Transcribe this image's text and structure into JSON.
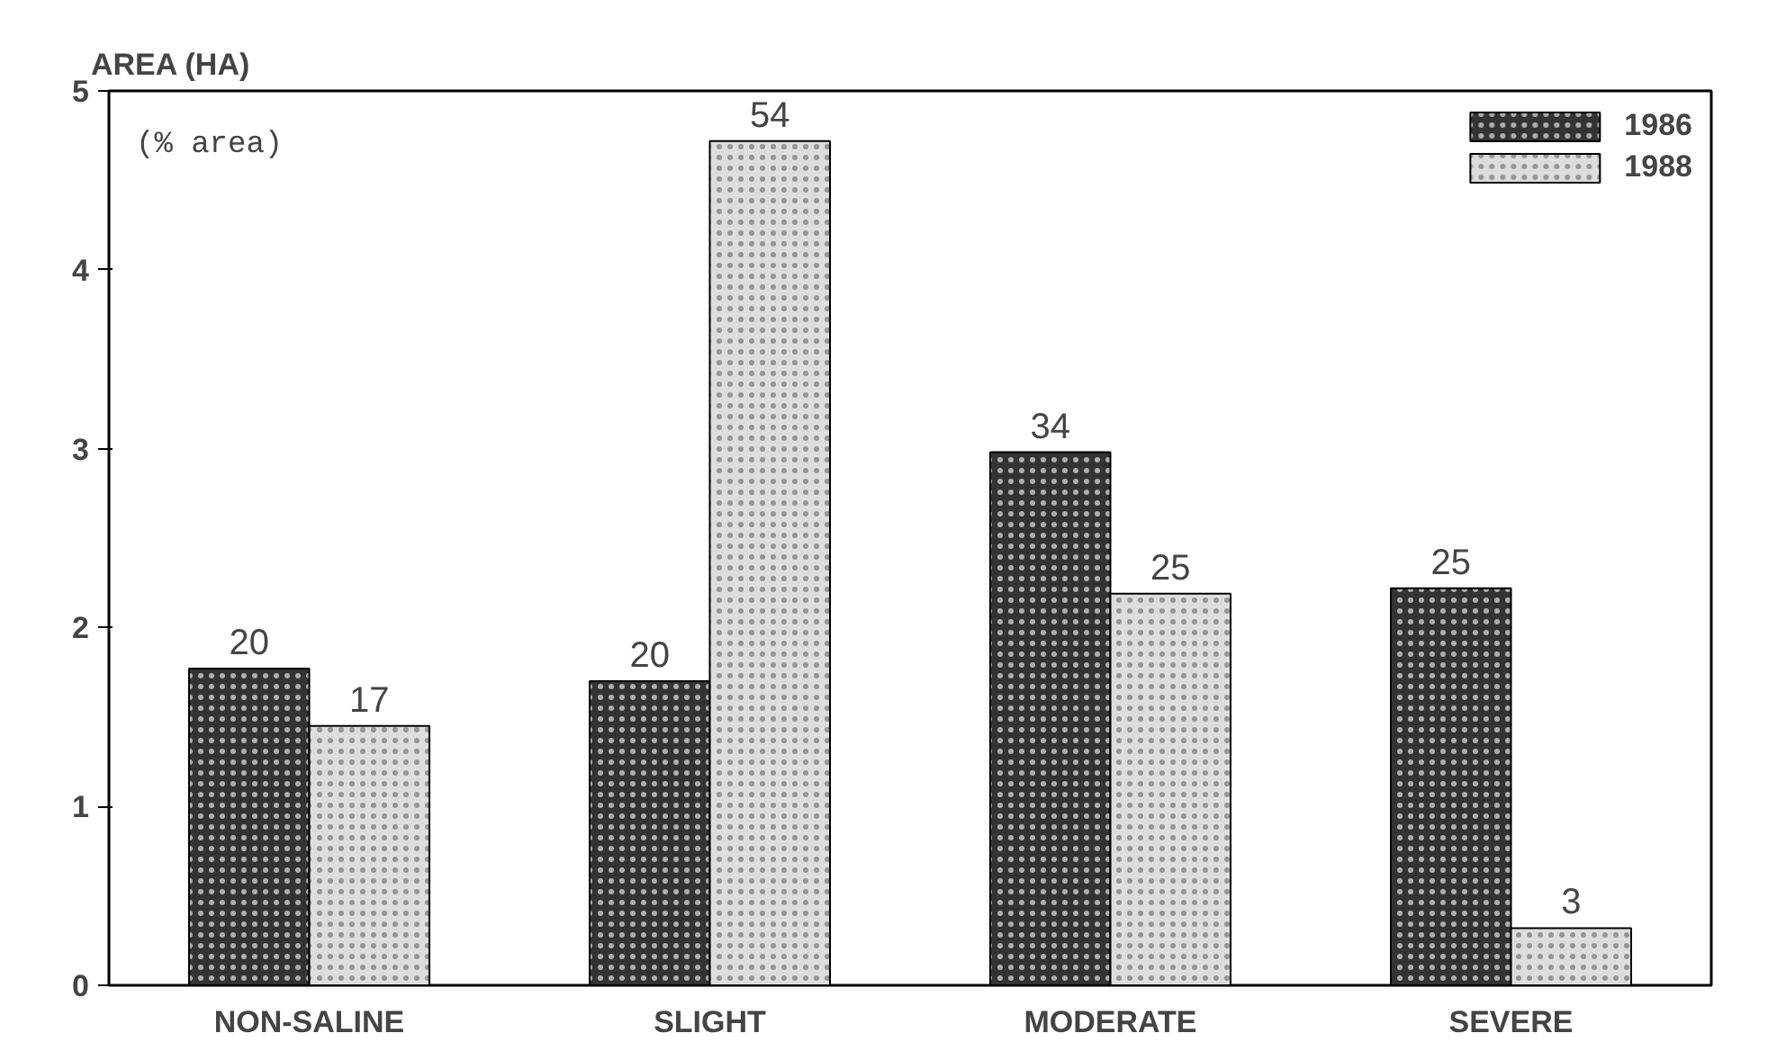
{
  "chart_data": {
    "type": "bar",
    "ylabel": "AREA (HA)",
    "categories": [
      "NON-SALINE",
      "SLIGHT",
      "MODERATE",
      "SEVERE"
    ],
    "series": [
      {
        "name": "1986",
        "color": "#333333",
        "values": [
          1.77,
          1.7,
          2.98,
          2.22
        ]
      },
      {
        "name": "1988",
        "color": "#dddddd",
        "values": [
          1.45,
          4.72,
          2.19,
          0.32
        ]
      }
    ],
    "annotations": [
      "(% area)",
      {
        "text": "20",
        "x": "NON-SALINE",
        "y": 1.77
      },
      {
        "text": "17",
        "x": "NON-SALINE",
        "y": 1.45
      },
      {
        "text": "20",
        "x": "SLIGHT",
        "y": 1.7
      },
      {
        "text": "54",
        "x": "SLIGHT",
        "y": 4.72
      },
      {
        "text": "34",
        "x": "MODERATE",
        "y": 2.98
      },
      {
        "text": "25",
        "x": "MODERATE",
        "y": 2.19
      },
      {
        "text": "25",
        "x": "SEVERE",
        "y": 2.22
      },
      {
        "text": "3",
        "x": "SEVERE",
        "y": 0.32
      }
    ],
    "ylim": [
      0,
      5
    ],
    "yticks": [
      0,
      1,
      2,
      3,
      4,
      5
    ],
    "grid": false,
    "legend": "top right"
  }
}
